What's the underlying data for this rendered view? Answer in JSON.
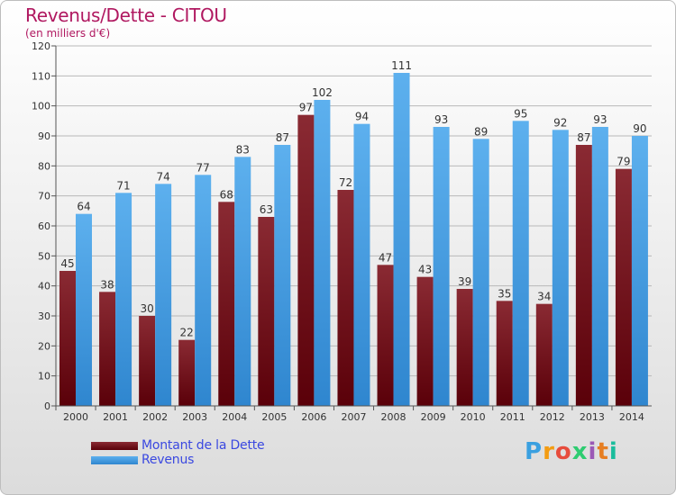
{
  "title": "Revenus/Dette - CITOU",
  "subtitle": "(en milliers d'€)",
  "colors": {
    "dette": "#6b0d16",
    "revenus": "#4ea3e6"
  },
  "legend": {
    "dette_label": "Montant de la Dette",
    "revenus_label": "Revenus"
  },
  "logo": {
    "text": "Proxiti"
  },
  "chart_data": {
    "type": "bar",
    "title": "Revenus/Dette - CITOU",
    "subtitle": "(en milliers d'€)",
    "categories": [
      "2000",
      "2001",
      "2002",
      "2003",
      "2004",
      "2005",
      "2006",
      "2007",
      "2008",
      "2009",
      "2010",
      "2011",
      "2012",
      "2013",
      "2014"
    ],
    "series": [
      {
        "name": "Montant de la Dette",
        "values": [
          45,
          38,
          30,
          22,
          68,
          63,
          97,
          72,
          47,
          43,
          39,
          35,
          34,
          87,
          79
        ]
      },
      {
        "name": "Revenus",
        "values": [
          64,
          71,
          74,
          77,
          83,
          87,
          102,
          94,
          111,
          93,
          89,
          95,
          92,
          93,
          90
        ]
      }
    ],
    "ylim": [
      0,
      120
    ],
    "yticks": [
      0,
      10,
      20,
      30,
      40,
      50,
      60,
      70,
      80,
      90,
      100,
      110,
      120
    ],
    "grid": true,
    "legend_position": "bottom-left"
  }
}
